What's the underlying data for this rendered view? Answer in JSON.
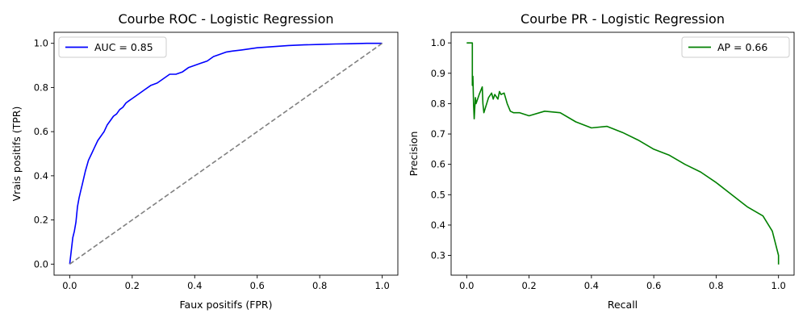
{
  "chart_data": [
    {
      "type": "line",
      "title": "Courbe ROC - Logistic Regression",
      "xlabel": "Faux positifs (FPR)",
      "ylabel": "Vrais positifs (TPR)",
      "xlim": [
        -0.05,
        1.05
      ],
      "ylim": [
        -0.05,
        1.05
      ],
      "xticks": [
        "0.0",
        "0.2",
        "0.4",
        "0.6",
        "0.8",
        "1.0"
      ],
      "yticks": [
        "0.0",
        "0.2",
        "0.4",
        "0.6",
        "0.8",
        "1.0"
      ],
      "grid": false,
      "legend": {
        "position": "upper left"
      },
      "series": [
        {
          "name": "AUC = 0.85",
          "color": "#0000ff",
          "style": "solid",
          "x": [
            0.0,
            0.005,
            0.01,
            0.015,
            0.02,
            0.025,
            0.03,
            0.035,
            0.04,
            0.045,
            0.05,
            0.06,
            0.07,
            0.08,
            0.09,
            0.1,
            0.11,
            0.12,
            0.13,
            0.14,
            0.15,
            0.16,
            0.17,
            0.18,
            0.19,
            0.2,
            0.22,
            0.24,
            0.26,
            0.28,
            0.3,
            0.32,
            0.34,
            0.36,
            0.38,
            0.4,
            0.42,
            0.44,
            0.46,
            0.48,
            0.5,
            0.52,
            0.55,
            0.6,
            0.65,
            0.7,
            0.75,
            0.8,
            0.85,
            0.9,
            0.95,
            1.0
          ],
          "y": [
            0.0,
            0.06,
            0.12,
            0.15,
            0.19,
            0.26,
            0.3,
            0.33,
            0.36,
            0.39,
            0.42,
            0.47,
            0.5,
            0.53,
            0.56,
            0.58,
            0.6,
            0.63,
            0.65,
            0.67,
            0.68,
            0.7,
            0.71,
            0.73,
            0.74,
            0.75,
            0.77,
            0.79,
            0.81,
            0.82,
            0.84,
            0.86,
            0.86,
            0.87,
            0.89,
            0.9,
            0.91,
            0.92,
            0.94,
            0.95,
            0.96,
            0.965,
            0.97,
            0.98,
            0.985,
            0.99,
            0.993,
            0.995,
            0.997,
            0.998,
            1.0,
            1.0
          ]
        },
        {
          "name": "",
          "color": "#808080",
          "style": "dashed",
          "x": [
            0.0,
            1.0
          ],
          "y": [
            0.0,
            1.0
          ]
        }
      ]
    },
    {
      "type": "line",
      "title": "Courbe PR - Logistic Regression",
      "xlabel": "Recall",
      "ylabel": "Precision",
      "xlim": [
        -0.05,
        1.05
      ],
      "ylim": [
        0.235,
        1.035
      ],
      "xticks": [
        "0.0",
        "0.2",
        "0.4",
        "0.6",
        "0.8",
        "1.0"
      ],
      "yticks": [
        "0.3",
        "0.4",
        "0.5",
        "0.6",
        "0.7",
        "0.8",
        "0.9",
        "1.0"
      ],
      "grid": false,
      "legend": {
        "position": "upper right"
      },
      "series": [
        {
          "name": "AP = 0.66",
          "color": "#008000",
          "style": "solid",
          "x": [
            0.0,
            0.018,
            0.018,
            0.02,
            0.022,
            0.024,
            0.026,
            0.028,
            0.03,
            0.04,
            0.05,
            0.052,
            0.055,
            0.07,
            0.08,
            0.085,
            0.09,
            0.1,
            0.105,
            0.11,
            0.12,
            0.13,
            0.14,
            0.15,
            0.17,
            0.2,
            0.25,
            0.3,
            0.35,
            0.4,
            0.45,
            0.5,
            0.55,
            0.6,
            0.65,
            0.7,
            0.75,
            0.8,
            0.85,
            0.9,
            0.95,
            0.98,
            1.0,
            1.0
          ],
          "y": [
            1.0,
            1.0,
            0.86,
            0.89,
            0.8,
            0.75,
            0.79,
            0.82,
            0.8,
            0.83,
            0.855,
            0.8,
            0.77,
            0.82,
            0.835,
            0.815,
            0.83,
            0.815,
            0.84,
            0.83,
            0.835,
            0.8,
            0.775,
            0.77,
            0.77,
            0.76,
            0.775,
            0.77,
            0.74,
            0.72,
            0.725,
            0.705,
            0.68,
            0.65,
            0.63,
            0.6,
            0.575,
            0.54,
            0.5,
            0.46,
            0.43,
            0.38,
            0.3,
            0.27
          ]
        }
      ]
    }
  ]
}
